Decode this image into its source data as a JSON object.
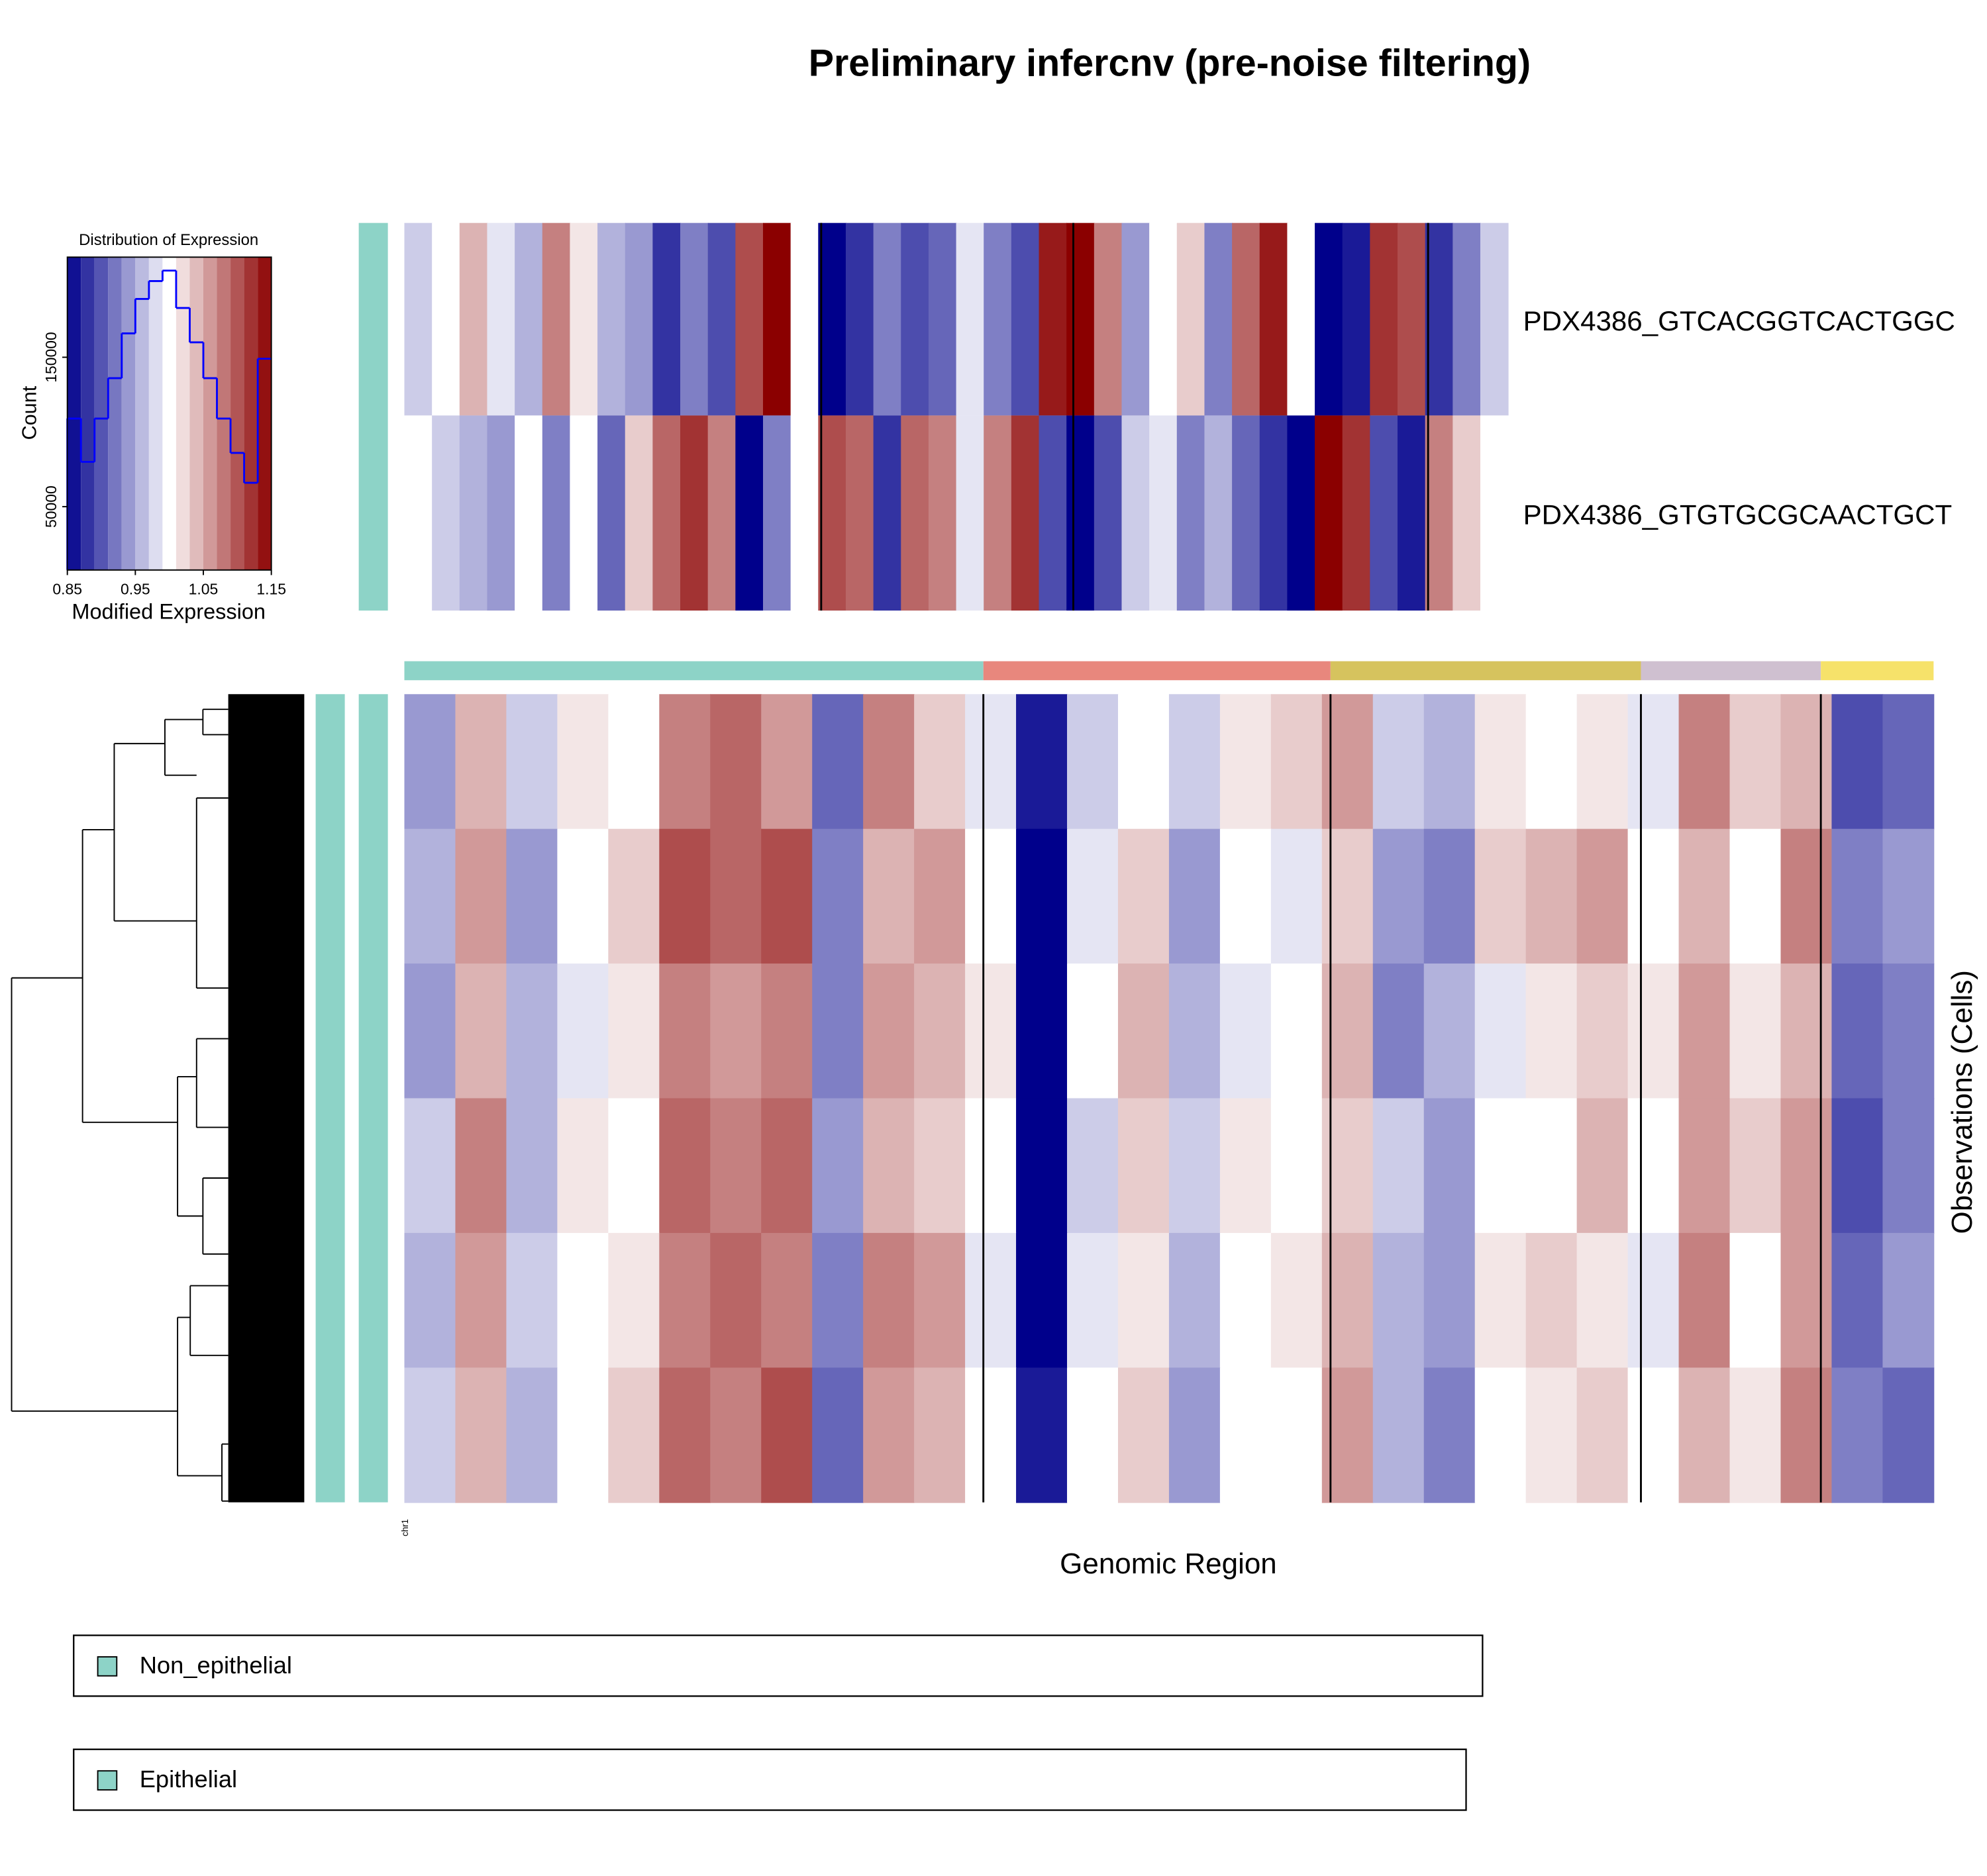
{
  "chart_data": [
    {
      "type": "histogram",
      "title": "Distribution of Expression",
      "xlabel": "Modified Expression",
      "ylabel": "Count",
      "bins": [
        0.85,
        0.87,
        0.89,
        0.91,
        0.93,
        0.95,
        0.97,
        0.99,
        1.01,
        1.03,
        1.05,
        1.07,
        1.09,
        1.11,
        1.13,
        1.15
      ],
      "values": [
        109000,
        80000,
        109000,
        136000,
        166000,
        189000,
        201000,
        208000,
        183000,
        160000,
        136000,
        109000,
        86000,
        66000,
        149000
      ],
      "color": "#0000FF",
      "background_colors": [
        "#00008B",
        "#FFFFFF",
        "#8B0000"
      ],
      "xlim": [
        0.85,
        1.15
      ],
      "xticks": [
        0.85,
        0.95,
        1.05,
        1.15
      ],
      "ylim": [
        7600,
        217000
      ],
      "yticks": [
        50000,
        150000
      ]
    },
    {
      "type": "heatmap",
      "title": "Preliminary infercnv (pre-noise filtering)",
      "xlabel": "Genomic Region",
      "ylabel": "Observations (Cells)",
      "chromosome_label": "chr1",
      "colors": [
        "#00008B",
        "#FFFFFF",
        "#8B0000"
      ],
      "zlim": [
        0.9,
        1.1
      ],
      "reference_names": [
        "PDX4386_GTCACGGTCACTGGC",
        "PDX4386_GTGTGCGCAACTGCT"
      ],
      "reference_values": [
        [
          0.98,
          1.0,
          1.03,
          0.99,
          0.97,
          1.05,
          1.01,
          0.97,
          0.96,
          0.92,
          0.95,
          0.93,
          1.07,
          1.1,
          1.0,
          0.89,
          0.92,
          0.95,
          0.93,
          0.94,
          0.99,
          0.95,
          0.93,
          1.09,
          1.12,
          1.05,
          0.96,
          1.0,
          1.02,
          0.95,
          1.06,
          1.09,
          1.0,
          0.88,
          0.91,
          1.08,
          1.07,
          0.92,
          0.95,
          0.98
        ],
        [
          1.0,
          0.98,
          0.97,
          0.96,
          1.0,
          0.95,
          1.0,
          0.94,
          1.02,
          1.06,
          1.08,
          1.05,
          0.9,
          0.95,
          1.0,
          1.07,
          1.06,
          0.92,
          1.06,
          1.05,
          0.99,
          1.05,
          1.08,
          0.93,
          0.88,
          0.93,
          0.98,
          0.99,
          0.95,
          0.97,
          0.94,
          0.92,
          0.89,
          1.13,
          1.08,
          0.93,
          0.91,
          1.05,
          1.02,
          1.0
        ]
      ],
      "values": [
        [
          0.96,
          1.03,
          0.98,
          1.01,
          1.0,
          1.05,
          1.06,
          1.04,
          0.94,
          1.05,
          1.02,
          0.99,
          0.91,
          0.98,
          1.0,
          0.98,
          1.01,
          1.02,
          1.04,
          0.98,
          0.97,
          1.01,
          1.0,
          1.01,
          0.99,
          1.05,
          1.02,
          1.03,
          0.93,
          0.94
        ],
        [
          0.97,
          1.04,
          0.96,
          1.0,
          1.02,
          1.07,
          1.06,
          1.07,
          0.95,
          1.03,
          1.04,
          1.0,
          0.89,
          0.99,
          1.02,
          0.96,
          1.0,
          0.99,
          1.02,
          0.96,
          0.95,
          1.02,
          1.03,
          1.04,
          1.0,
          1.03,
          1.0,
          1.05,
          0.95,
          0.96
        ],
        [
          0.96,
          1.03,
          0.97,
          0.99,
          1.01,
          1.05,
          1.04,
          1.05,
          0.95,
          1.04,
          1.03,
          1.01,
          0.9,
          1.0,
          1.03,
          0.97,
          0.99,
          1.0,
          1.03,
          0.95,
          0.97,
          0.99,
          1.01,
          1.02,
          1.01,
          1.04,
          1.01,
          1.03,
          0.94,
          0.95
        ],
        [
          0.98,
          1.05,
          0.97,
          1.01,
          1.0,
          1.06,
          1.05,
          1.06,
          0.96,
          1.03,
          1.02,
          1.0,
          0.89,
          0.98,
          1.02,
          0.98,
          1.01,
          1.0,
          1.02,
          0.98,
          0.96,
          1.0,
          1.0,
          1.03,
          1.0,
          1.04,
          1.02,
          1.04,
          0.93,
          0.95
        ],
        [
          0.97,
          1.04,
          0.98,
          1.0,
          1.01,
          1.05,
          1.06,
          1.05,
          0.95,
          1.05,
          1.04,
          0.99,
          0.9,
          0.99,
          1.01,
          0.97,
          1.0,
          1.01,
          1.03,
          0.97,
          0.96,
          1.01,
          1.02,
          1.01,
          0.99,
          1.05,
          1.0,
          1.04,
          0.94,
          0.96
        ],
        [
          0.98,
          1.03,
          0.97,
          1.0,
          1.02,
          1.06,
          1.05,
          1.07,
          0.94,
          1.04,
          1.03,
          1.0,
          0.91,
          1.0,
          1.02,
          0.96,
          1.0,
          1.0,
          1.04,
          0.97,
          0.95,
          1.0,
          1.01,
          1.02,
          1.0,
          1.03,
          1.01,
          1.05,
          0.95,
          0.94
        ]
      ],
      "legend": [
        {
          "name": "Non_epithelial",
          "color": "#8DD3C7"
        },
        {
          "name": "Epithelial",
          "color": "#8DD3C7"
        }
      ]
    }
  ]
}
